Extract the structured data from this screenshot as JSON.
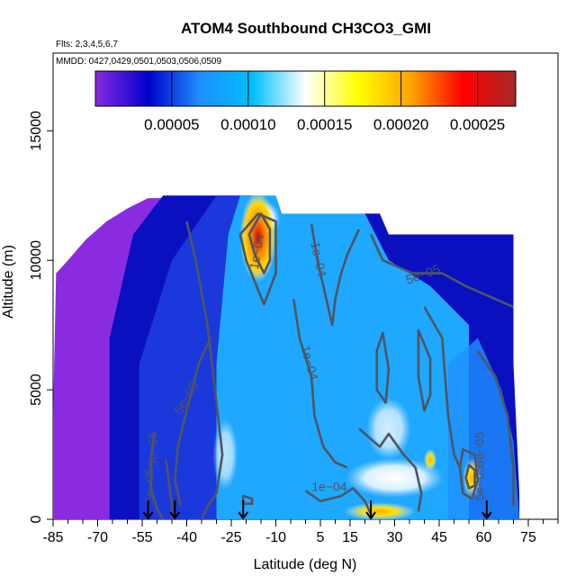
{
  "chart_data": {
    "type": "heatmap",
    "title": "ATOM4 Southbound CH3CO3_GMI",
    "subtitle_flights": "Flts: 2,3,4,5,6,7",
    "subtitle_dates": "MMDD: 0427,0429,0501,0503,0506,0509",
    "xlabel": "Latitude (deg N)",
    "ylabel": "Altitude (m)",
    "xlim": [
      -85,
      85
    ],
    "ylim": [
      0,
      18000
    ],
    "x_ticks": [
      -85,
      -70,
      -55,
      -40,
      -25,
      -10,
      5,
      15,
      30,
      45,
      60,
      75
    ],
    "x_minor_ticks": [
      -80,
      -75,
      -65,
      -60,
      -50,
      -45,
      -35,
      -30,
      -20,
      -15,
      -5,
      0,
      10,
      20,
      25,
      35,
      40,
      50,
      55,
      65,
      70,
      80,
      85
    ],
    "y_ticks": [
      0,
      5000,
      10000,
      15000
    ],
    "colorbar": {
      "min": 0,
      "max": 0.000275,
      "ticks": [
        "0.00005",
        "0.00010",
        "0.00015",
        "0.00020",
        "0.00025"
      ],
      "tick_values": [
        5e-05,
        0.0001,
        0.00015,
        0.0002,
        0.00025
      ],
      "colors": [
        "#8a2be2",
        "#0000cd",
        "#1e90ff",
        "#00bfff",
        "#ffffff",
        "#ffff00",
        "#ffa500",
        "#ff0000",
        "#a52a2a"
      ]
    },
    "contour_labels": [
      {
        "text": "1e−04",
        "lat": -15,
        "alt": 10300,
        "angle": -80
      },
      {
        "text": "1e−04",
        "lat": 3,
        "alt": 10000,
        "angle": 78
      },
      {
        "text": "5e−05",
        "lat": 40,
        "alt": 9300,
        "angle": -20
      },
      {
        "text": "1e−04",
        "lat": 0,
        "alt": 6000,
        "angle": 75
      },
      {
        "text": "5e−05",
        "lat": -39,
        "alt": 4600,
        "angle": -60
      },
      {
        "text": "1e−04",
        "lat": 8,
        "alt": 1100,
        "angle": 0
      },
      {
        "text": "5e−05",
        "lat": -50,
        "alt": 2700,
        "angle": -90
      },
      {
        "text": "5e−05",
        "lat": -51,
        "alt": 1300,
        "angle": -90
      },
      {
        "text": "5e−05",
        "lat": 60,
        "alt": 2700,
        "angle": -90
      },
      {
        "text": "5e−05",
        "lat": 60,
        "alt": 1400,
        "angle": -90
      }
    ],
    "arrow_latitudes": [
      -53,
      -44,
      -21,
      22,
      61
    ]
  }
}
